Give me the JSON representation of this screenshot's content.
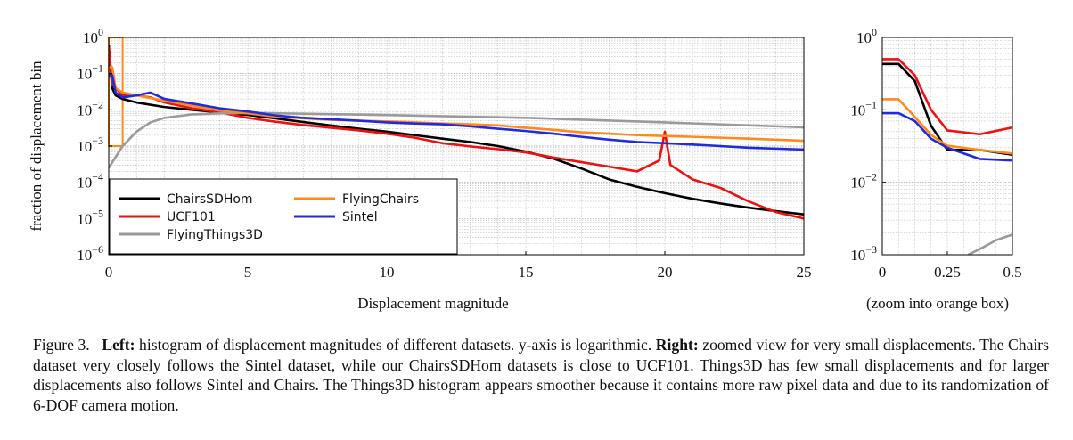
{
  "chart_data": [
    {
      "type": "line",
      "xlabel": "Displacement magnitude",
      "ylabel": "fraction of displacement bin",
      "xlim": [
        0,
        25
      ],
      "ylim": [
        1e-06,
        1
      ],
      "yscale": "log",
      "xticks": [
        "0",
        "5",
        "10",
        "15",
        "20",
        "25"
      ],
      "yticks": [
        {
          "base": "10",
          "exp": "0"
        },
        {
          "base": "10",
          "exp": "−1"
        },
        {
          "base": "10",
          "exp": "−2"
        },
        {
          "base": "10",
          "exp": "−3"
        },
        {
          "base": "10",
          "exp": "−4"
        },
        {
          "base": "10",
          "exp": "−5"
        },
        {
          "base": "10",
          "exp": "−6"
        }
      ],
      "grid": true,
      "legend_position": "bottom-left",
      "zoom_box": {
        "x": [
          0,
          0.5
        ],
        "y": [
          0.001,
          1
        ]
      },
      "series": [
        {
          "name": "ChairsSDHom",
          "color": "#000000",
          "x": [
            0,
            0.125,
            0.25,
            0.5,
            1,
            2,
            3,
            4,
            5,
            6,
            7,
            8,
            9,
            10,
            11,
            12,
            13,
            14,
            15,
            16,
            17,
            18,
            19,
            20,
            21,
            22,
            23,
            24,
            25
          ],
          "y": [
            0.6,
            0.04,
            0.025,
            0.02,
            0.016,
            0.012,
            0.01,
            0.0085,
            0.0072,
            0.0058,
            0.0046,
            0.0037,
            0.003,
            0.0025,
            0.002,
            0.0016,
            0.0013,
            0.001,
            0.0007,
            0.00045,
            0.00024,
            0.00012,
            7.5e-05,
            5e-05,
            3.5e-05,
            2.6e-05,
            2e-05,
            1.6e-05,
            1.3e-05
          ]
        },
        {
          "name": "UCF101",
          "color": "#ee1111",
          "x": [
            0,
            0.125,
            0.25,
            0.5,
            1,
            1.5,
            2,
            3,
            4,
            5,
            6,
            7,
            8,
            9,
            10,
            11,
            12,
            13,
            14,
            15,
            16,
            17,
            18,
            19,
            19.8,
            20,
            20.2,
            21,
            22,
            23,
            24,
            25
          ],
          "y": [
            0.55,
            0.05,
            0.04,
            0.025,
            0.025,
            0.022,
            0.016,
            0.011,
            0.0085,
            0.006,
            0.0047,
            0.0038,
            0.0032,
            0.0027,
            0.0022,
            0.0017,
            0.0012,
            0.00098,
            0.00082,
            0.00067,
            0.00048,
            0.00036,
            0.00027,
            0.0002,
            0.0004,
            0.0025,
            0.0003,
            0.00012,
            7e-05,
            3e-05,
            1.5e-05,
            1e-05
          ]
        },
        {
          "name": "FlyingThings3D",
          "color": "#9a9a9a",
          "x": [
            0,
            0.25,
            0.5,
            1,
            1.5,
            2,
            3,
            4,
            5,
            7,
            10,
            15,
            20,
            25
          ],
          "y": [
            0.00025,
            0.0005,
            0.001,
            0.0025,
            0.0045,
            0.006,
            0.0075,
            0.008,
            0.0082,
            0.0078,
            0.0072,
            0.006,
            0.0045,
            0.0033
          ]
        },
        {
          "name": "FlyingChairs",
          "color": "#ff8a1a",
          "x": [
            0,
            0.125,
            0.25,
            0.5,
            1,
            2,
            3,
            4,
            5,
            6,
            7,
            8,
            9,
            10,
            11,
            12,
            13,
            14,
            15,
            16,
            17,
            18,
            19,
            20,
            21,
            22,
            23,
            24,
            25
          ],
          "y": [
            0.15,
            0.15,
            0.04,
            0.03,
            0.025,
            0.018,
            0.013,
            0.0095,
            0.008,
            0.0065,
            0.0058,
            0.0053,
            0.005,
            0.0048,
            0.0045,
            0.0042,
            0.004,
            0.0037,
            0.0032,
            0.0028,
            0.0024,
            0.0022,
            0.002,
            0.0019,
            0.0018,
            0.0017,
            0.0016,
            0.0015,
            0.0014
          ]
        },
        {
          "name": "Sintel",
          "color": "#1f2bdc",
          "x": [
            0,
            0.125,
            0.25,
            0.5,
            1,
            1.5,
            2,
            3,
            4,
            5,
            6,
            7,
            8,
            9,
            10,
            11,
            12,
            13,
            14,
            15,
            16,
            17,
            18,
            19,
            20,
            21,
            22,
            23,
            24,
            25
          ],
          "y": [
            0.09,
            0.09,
            0.03,
            0.022,
            0.025,
            0.03,
            0.02,
            0.015,
            0.011,
            0.009,
            0.007,
            0.006,
            0.0055,
            0.005,
            0.0045,
            0.0042,
            0.004,
            0.0035,
            0.003,
            0.0026,
            0.0022,
            0.0018,
            0.0015,
            0.0013,
            0.0012,
            0.0011,
            0.001,
            0.0009,
            0.00085,
            0.0008
          ]
        }
      ]
    },
    {
      "type": "line",
      "xlabel": "(zoom into orange box)",
      "xlim": [
        0,
        0.5
      ],
      "ylim": [
        0.001,
        1
      ],
      "yscale": "log",
      "xticks": [
        "0",
        "0.25",
        "0.5"
      ],
      "yticks": [
        {
          "base": "10",
          "exp": "0"
        },
        {
          "base": "10",
          "exp": "−1"
        },
        {
          "base": "10",
          "exp": "−2"
        },
        {
          "base": "10",
          "exp": "−3"
        }
      ],
      "grid": true,
      "series": [
        {
          "name": "ChairsSDHom",
          "color": "#000000",
          "x": [
            0,
            0.0625,
            0.125,
            0.1875,
            0.25,
            0.375,
            0.5
          ],
          "y": [
            0.43,
            0.43,
            0.25,
            0.06,
            0.028,
            0.028,
            0.024
          ]
        },
        {
          "name": "UCF101",
          "color": "#ee1111",
          "x": [
            0,
            0.0625,
            0.125,
            0.1875,
            0.25,
            0.375,
            0.5
          ],
          "y": [
            0.5,
            0.5,
            0.3,
            0.1,
            0.052,
            0.046,
            0.057
          ]
        },
        {
          "name": "FlyingThings3D",
          "color": "#9a9a9a",
          "x": [
            0.33,
            0.375,
            0.44,
            0.5
          ],
          "y": [
            0.001,
            0.0012,
            0.0016,
            0.0019
          ]
        },
        {
          "name": "FlyingChairs",
          "color": "#ff8a1a",
          "x": [
            0,
            0.0625,
            0.125,
            0.1875,
            0.25,
            0.375,
            0.5
          ],
          "y": [
            0.14,
            0.14,
            0.08,
            0.045,
            0.032,
            0.028,
            0.025
          ]
        },
        {
          "name": "Sintel",
          "color": "#1f2bdc",
          "x": [
            0,
            0.0625,
            0.125,
            0.1875,
            0.25,
            0.375,
            0.5
          ],
          "y": [
            0.09,
            0.09,
            0.07,
            0.04,
            0.03,
            0.021,
            0.02
          ]
        }
      ]
    }
  ],
  "caption": {
    "figure_label": "Figure 3.",
    "left_label": "Left:",
    "left_text": "histogram of displacement magnitudes of different datasets. y-axis is logarithmic.",
    "right_label": "Right:",
    "right_text": "zoomed view for very small displacements. The Chairs dataset very closely follows the Sintel dataset, while our ChairsSDHom datasets is close to UCF101. Things3D has few small displacements and for larger displacements also follows Sintel and Chairs.  The Things3D histogram appears smoother because it contains more raw pixel data and due to its randomization of 6-DOF camera motion."
  }
}
